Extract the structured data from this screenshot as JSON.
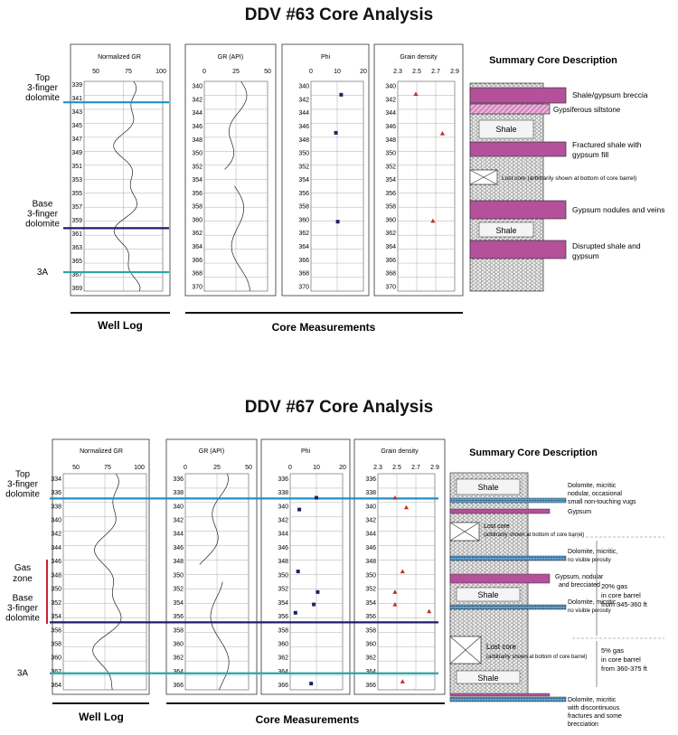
{
  "colors": {
    "top": "#1f8fc9",
    "base": "#1c1c6e",
    "a3": "#2aa6a6",
    "gas": "#cc2233",
    "gypsum": "#b5509a",
    "point": "#1c2266",
    "tri": "#c0302c",
    "dolomite": "#2f6f9b"
  },
  "analyses": [
    {
      "title": "DDV #63 Core Analysis",
      "panel_titles": {
        "ngr": "Normalized GR",
        "gr": "GR (API)",
        "phi": "Phi",
        "gd": "Grain density"
      },
      "ngr_ticks": [
        "50",
        "75",
        "100"
      ],
      "gr_ticks": [
        "0",
        "25",
        "50"
      ],
      "phi_ticks": [
        "0",
        "10",
        "20"
      ],
      "gd_ticks": [
        "2.3",
        "2.5",
        "2.7",
        "2.9"
      ],
      "depth_ticks_log": [
        "339",
        "341",
        "343",
        "345",
        "347",
        "349",
        "351",
        "353",
        "355",
        "357",
        "359",
        "361",
        "363",
        "365",
        "367",
        "369"
      ],
      "depth_ticks_core": [
        "340",
        "342",
        "344",
        "346",
        "348",
        "350",
        "352",
        "354",
        "356",
        "358",
        "360",
        "362",
        "364",
        "366",
        "368",
        "370"
      ],
      "markers": [
        {
          "label": "Top 3-finger dolomite",
          "lines": [
            "Top",
            "3-finger",
            "dolomite"
          ],
          "depth": 341.6,
          "kind": "top"
        },
        {
          "label": "Base 3-finger dolomite",
          "lines": [
            "Base",
            "3-finger",
            "dolomite"
          ],
          "depth": 360.2,
          "kind": "base"
        },
        {
          "label": "3A",
          "lines": [
            "3A"
          ],
          "depth": 366.7,
          "kind": "a3"
        }
      ],
      "phi_points": [
        {
          "depth": 341.3,
          "phi": 11.5
        },
        {
          "depth": 347.0,
          "phi": 9.5
        },
        {
          "depth": 360.3,
          "phi": 10.2
        }
      ],
      "gd_points": [
        {
          "depth": 341.2,
          "gd": 2.49
        },
        {
          "depth": 347.1,
          "gd": 2.77
        },
        {
          "depth": 360.2,
          "gd": 2.67
        }
      ],
      "footer_log": "Well Log",
      "footer_core": "Core Measurements",
      "summary_title": "Summary Core Description",
      "descriptions": [
        "Shale/gypsum breccia",
        "Gypsiferous siltstone",
        "Fractured shale with gypsum fill",
        "Lost core (arbitrarily shown at bottom of core barrel)",
        "Gypsum nodules and veins",
        "Disrupted shale and gypsum"
      ],
      "shale_labels": [
        "Shale",
        "Shale"
      ]
    },
    {
      "title": "DDV #67 Core Analysis",
      "panel_titles": {
        "ngr": "Normalized GR",
        "gr": "GR (API)",
        "phi": "Phi",
        "gd": "Grain density"
      },
      "ngr_ticks": [
        "50",
        "75",
        "100"
      ],
      "gr_ticks": [
        "0",
        "25",
        "50"
      ],
      "phi_ticks": [
        "0",
        "10",
        "20"
      ],
      "gd_ticks": [
        "2.3",
        "2.5",
        "2.7",
        "2.9"
      ],
      "depth_ticks_log": [
        "334",
        "336",
        "338",
        "340",
        "342",
        "344",
        "346",
        "348",
        "350",
        "352",
        "354",
        "356",
        "358",
        "360",
        "362",
        "364"
      ],
      "depth_ticks_core": [
        "336",
        "338",
        "340",
        "342",
        "344",
        "346",
        "348",
        "350",
        "352",
        "354",
        "356",
        "358",
        "360",
        "362",
        "364",
        "366"
      ],
      "markers": [
        {
          "label": "Top 3-finger dolomite",
          "lines": [
            "Top",
            "3-finger",
            "dolomite"
          ],
          "depth": 336.9,
          "kind": "top"
        },
        {
          "label": "Base 3-finger dolomite",
          "lines": [
            "Base",
            "3-finger",
            "dolomite"
          ],
          "depth": 354.9,
          "kind": "base"
        },
        {
          "label": "3A",
          "lines": [
            "3A"
          ],
          "depth": 362.3,
          "kind": "a3"
        }
      ],
      "gas_zone": {
        "label": "Gas zone",
        "lines": [
          "Gas",
          "zone"
        ]
      },
      "phi_points": [
        {
          "depth": 338.8,
          "phi": 10.0
        },
        {
          "depth": 340.5,
          "phi": 3.5
        },
        {
          "depth": 349.5,
          "phi": 3.0
        },
        {
          "depth": 352.5,
          "phi": 10.5
        },
        {
          "depth": 354.3,
          "phi": 9.0
        },
        {
          "depth": 355.5,
          "phi": 2.0
        },
        {
          "depth": 365.8,
          "phi": 8.0
        }
      ],
      "gd_points": [
        {
          "depth": 338.8,
          "gd": 2.48
        },
        {
          "depth": 340.2,
          "gd": 2.6
        },
        {
          "depth": 349.5,
          "gd": 2.56
        },
        {
          "depth": 352.5,
          "gd": 2.48
        },
        {
          "depth": 354.3,
          "gd": 2.48
        },
        {
          "depth": 355.3,
          "gd": 2.84
        },
        {
          "depth": 365.5,
          "gd": 2.56
        }
      ],
      "footer_log": "Well Log",
      "footer_core": "Core Measurements",
      "summary_title": "Summary Core Description",
      "descriptions": [
        "Dolomite, micritic nodular, occasional small non-touching vugs",
        "Gypsum",
        "Lost core (arbitrarily shown at bottom of core barrel)",
        "Dolomite, micritic, no visible porosity",
        "Gypsum, nodular and brecciated",
        "Dolomite, micritic, no visible porosity",
        "Lost core (arbitrarily shown at bottom of core barrel)",
        "Dolomite, micritic with discontinuous fractures and some brecciation"
      ],
      "shale_labels": [
        "Shale",
        "Shale",
        "Shale"
      ],
      "gas_notes": [
        "20% gas in core barrel from 345-360 ft",
        "5% gas in core barrel from 360-375 ft"
      ]
    }
  ]
}
